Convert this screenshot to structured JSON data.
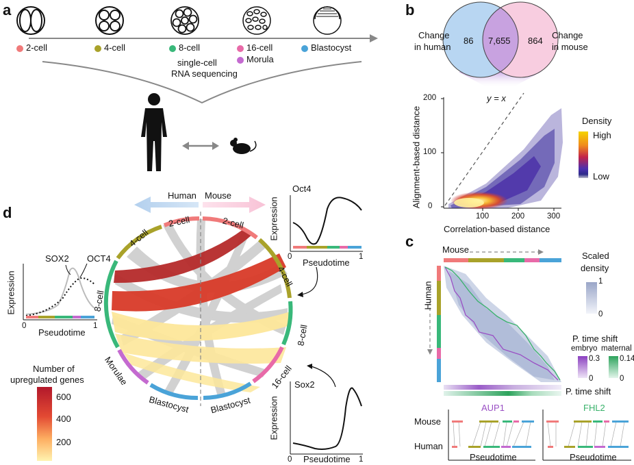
{
  "panels": {
    "a": "a",
    "b": "b",
    "c": "c",
    "d": "d"
  },
  "panel_a": {
    "stages": [
      {
        "label": "2-cell",
        "color": "#f07a7a"
      },
      {
        "label": "4-cell",
        "color": "#a9a22a"
      },
      {
        "label": "8-cell",
        "color": "#39b87a"
      },
      {
        "label": "16-cell",
        "color": "#e86aa8"
      },
      {
        "label": "Morula",
        "color": "#c46ad0"
      },
      {
        "label": "Blastocyst",
        "color": "#4aa3d8"
      }
    ],
    "method_line1": "single-cell",
    "method_line2": "RNA sequencing"
  },
  "panel_b": {
    "venn": {
      "left_label_1": "Change",
      "left_label_2": "in human",
      "right_label_1": "Change",
      "right_label_2": "in mouse",
      "left_only": "86",
      "overlap": "7,655",
      "right_only": "864"
    },
    "scatter": {
      "xlabel": "Correlation-based distance",
      "ylabel": "Alignment-based distance",
      "x_ticks": [
        "100",
        "200",
        "300"
      ],
      "y_ticks": [
        "0",
        "100",
        "200"
      ],
      "identity_label": "y = x",
      "legend_title": "Density",
      "legend_high": "High",
      "legend_low": "Low"
    }
  },
  "panel_c": {
    "mouse_label": "Mouse",
    "human_label": "Human",
    "scaled_title_1": "Scaled",
    "scaled_title_2": "density",
    "scaled_max": "1",
    "scaled_min": "0",
    "shift_title": "P. time shift",
    "embryo_label": "embryo",
    "maternal_label": "maternal",
    "embryo_max": "0.3",
    "embryo_min": "0",
    "maternal_max": "0.14",
    "maternal_min": "0",
    "shift_bar_label": "P. time shift",
    "gene1": "AUP1",
    "gene2": "FHL2",
    "gene1_color": "#9a4fc4",
    "gene2_color": "#38b26a",
    "row_mouse": "Mouse",
    "row_human": "Human",
    "xlabel": "Pseudotime"
  },
  "panel_d": {
    "human_arrow": "Human",
    "mouse_arrow": "Mouse",
    "segments_left": [
      "2-cell",
      "4-cell",
      "8-cell",
      "Morulae",
      "Blastocyst"
    ],
    "segments_right": [
      "2-cell",
      "4-cell",
      "8-cell",
      "16-cell",
      "Blastocyst"
    ],
    "oct4_title": "Oct4",
    "sox2_title": "Sox2",
    "expression": "Expression",
    "pseudotime": "Pseudotime",
    "axis_0": "0",
    "axis_1": "1",
    "left_plot_sox2": "SOX2",
    "left_plot_oct4": "OCT4",
    "colorbar_title_1": "Number of",
    "colorbar_title_2": "upregulated genes",
    "colorbar_ticks": [
      "600",
      "400",
      "200"
    ]
  }
}
